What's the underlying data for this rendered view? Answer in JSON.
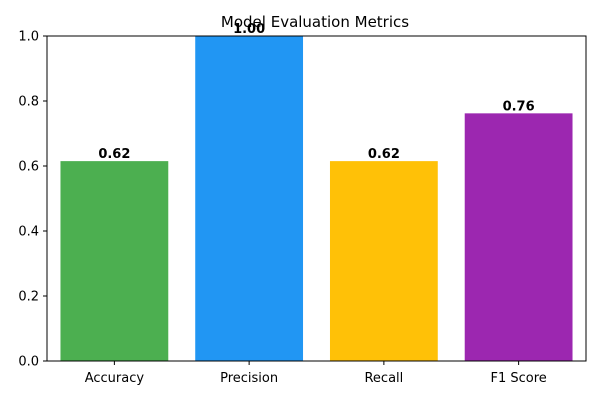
{
  "chart_data": {
    "type": "bar",
    "title": "Model Evaluation Metrics",
    "xlabel": "",
    "ylabel": "",
    "categories": [
      "Accuracy",
      "Precision",
      "Recall",
      "F1 Score"
    ],
    "values": [
      0.615,
      1.0,
      0.615,
      0.762
    ],
    "value_labels": [
      "0.62",
      "1.00",
      "0.62",
      "0.76"
    ],
    "colors": [
      "#4caf50",
      "#2196f3",
      "#ffc107",
      "#9c27b0"
    ],
    "ylim": [
      0,
      1.0
    ],
    "yticks": [
      0.0,
      0.2,
      0.4,
      0.6,
      0.8,
      1.0
    ],
    "ytick_labels": [
      "0.0",
      "0.2",
      "0.4",
      "0.6",
      "0.8",
      "1.0"
    ],
    "grid": false,
    "legend": "none"
  }
}
